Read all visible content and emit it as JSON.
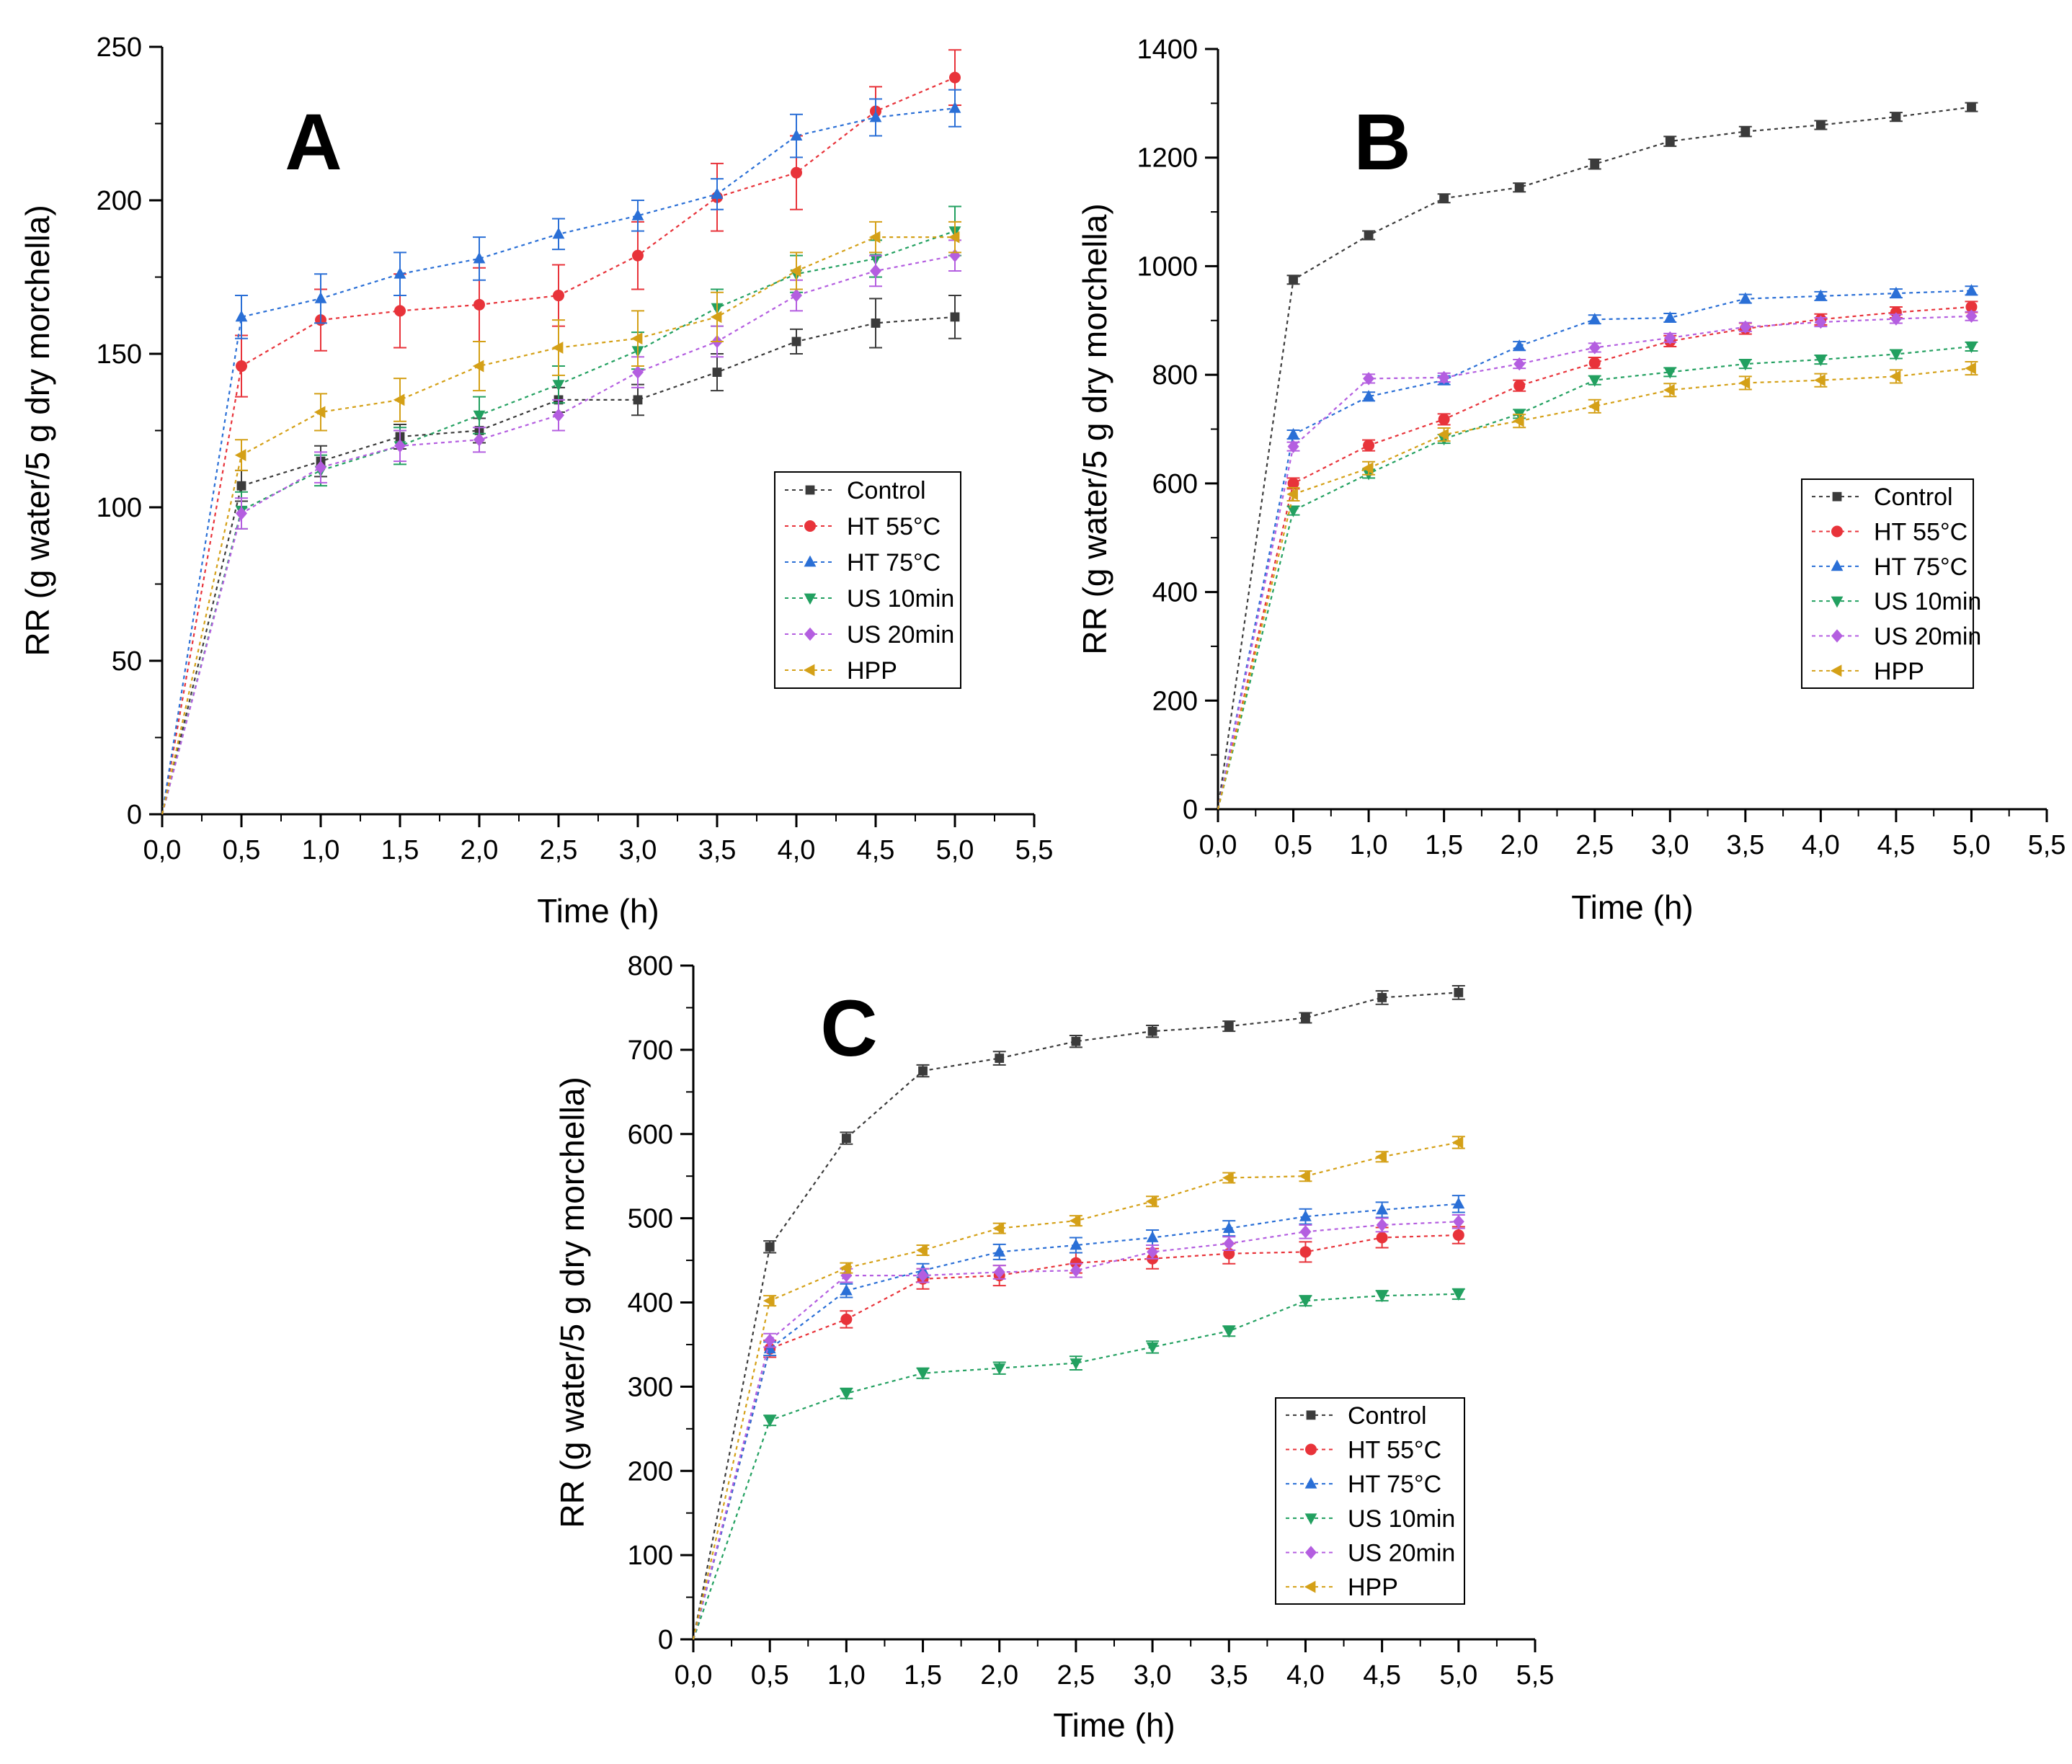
{
  "figure": {
    "colors": {
      "Control": "#3b3b3b",
      "HT 55°C": "#e8333a",
      "HT 75°C": "#2a6fd6",
      "US 10min": "#22a060",
      "US 20min": "#b45ee0",
      "HPP": "#d4a017"
    },
    "markers": {
      "Control": "square",
      "HT 55°C": "circle",
      "HT 75°C": "triangle-up",
      "US 10min": "triangle-down",
      "US 20min": "diamond",
      "HPP": "triangle-left"
    }
  },
  "chart_data": [
    {
      "panel": "A",
      "type": "line",
      "xlabel": "Time (h)",
      "ylabel": "RR (g water/5 g dry morchella)",
      "xlim": [
        0,
        5.5
      ],
      "ylim": [
        0,
        250
      ],
      "xticks": [
        "0,0",
        "0,5",
        "1,0",
        "1,5",
        "2,0",
        "2,5",
        "3,0",
        "3,5",
        "4,0",
        "4,5",
        "5,0",
        "5,5"
      ],
      "yticks": [
        "0",
        "50",
        "100",
        "150",
        "200",
        "250"
      ],
      "legend_position": "right-middle",
      "x": [
        0,
        0.5,
        1.0,
        1.5,
        2.0,
        2.5,
        3.0,
        3.5,
        4.0,
        4.5,
        5.0
      ],
      "series": [
        {
          "name": "Control",
          "values": [
            0,
            107,
            115,
            123,
            125,
            135,
            135,
            144,
            154,
            160,
            162
          ],
          "errors": [
            0,
            5,
            5,
            4,
            4,
            4,
            5,
            6,
            4,
            8,
            7
          ]
        },
        {
          "name": "HT 55°C",
          "values": [
            0,
            146,
            161,
            164,
            166,
            169,
            182,
            201,
            209,
            229,
            240
          ],
          "errors": [
            0,
            10,
            10,
            12,
            12,
            10,
            11,
            11,
            12,
            8,
            9
          ]
        },
        {
          "name": "HT 75°C",
          "values": [
            0,
            162,
            168,
            176,
            181,
            189,
            195,
            202,
            221,
            227,
            230
          ],
          "errors": [
            0,
            7,
            8,
            7,
            7,
            5,
            5,
            5,
            7,
            6,
            6
          ]
        },
        {
          "name": "US 10min",
          "values": [
            0,
            99,
            112,
            120,
            130,
            140,
            151,
            165,
            176,
            181,
            190
          ],
          "errors": [
            0,
            6,
            5,
            6,
            6,
            6,
            6,
            6,
            6,
            6,
            8
          ]
        },
        {
          "name": "US 20min",
          "values": [
            0,
            98,
            113,
            120,
            122,
            130,
            144,
            154,
            169,
            177,
            182
          ],
          "errors": [
            0,
            5,
            5,
            5,
            4,
            5,
            5,
            5,
            5,
            5,
            5
          ]
        },
        {
          "name": "HPP",
          "values": [
            0,
            117,
            131,
            135,
            146,
            152,
            155,
            162,
            177,
            188,
            188
          ],
          "errors": [
            0,
            5,
            6,
            7,
            8,
            9,
            9,
            8,
            6,
            5,
            5
          ]
        }
      ]
    },
    {
      "panel": "B",
      "type": "line",
      "xlabel": "Time (h)",
      "ylabel": "RR (g water/5 g dry morchella)",
      "xlim": [
        0,
        5.5
      ],
      "ylim": [
        0,
        1400
      ],
      "xticks": [
        "0,0",
        "0,5",
        "1,0",
        "1,5",
        "2,0",
        "2,5",
        "3,0",
        "3,5",
        "4,0",
        "4,5",
        "5,0",
        "5,5"
      ],
      "yticks": [
        "0",
        "200",
        "400",
        "600",
        "800",
        "1000",
        "1200",
        "1400"
      ],
      "legend_position": "right-middle",
      "x": [
        0,
        0.5,
        1.0,
        1.5,
        2.0,
        2.5,
        3.0,
        3.5,
        4.0,
        4.5,
        5.0
      ],
      "series": [
        {
          "name": "Control",
          "values": [
            0,
            975,
            1057,
            1125,
            1145,
            1188,
            1230,
            1248,
            1260,
            1275,
            1293
          ],
          "errors": [
            0,
            8,
            8,
            8,
            8,
            9,
            9,
            9,
            8,
            8,
            8
          ]
        },
        {
          "name": "HT 55°C",
          "values": [
            0,
            600,
            670,
            718,
            780,
            822,
            862,
            885,
            902,
            915,
            925
          ],
          "errors": [
            0,
            10,
            10,
            10,
            10,
            10,
            10,
            10,
            10,
            10,
            10
          ]
        },
        {
          "name": "HT 75°C",
          "values": [
            0,
            690,
            760,
            790,
            853,
            902,
            905,
            940,
            945,
            950,
            955
          ],
          "errors": [
            0,
            8,
            8,
            8,
            8,
            8,
            8,
            8,
            8,
            8,
            8
          ]
        },
        {
          "name": "US 10min",
          "values": [
            0,
            550,
            618,
            682,
            728,
            790,
            805,
            820,
            828,
            838,
            852
          ],
          "errors": [
            0,
            8,
            8,
            8,
            8,
            8,
            8,
            8,
            8,
            8,
            8
          ]
        },
        {
          "name": "US 20min",
          "values": [
            0,
            668,
            793,
            795,
            820,
            850,
            868,
            888,
            897,
            903,
            908
          ],
          "errors": [
            0,
            8,
            8,
            8,
            8,
            8,
            8,
            8,
            8,
            8,
            8
          ]
        },
        {
          "name": "HPP",
          "values": [
            0,
            580,
            628,
            690,
            715,
            742,
            772,
            785,
            790,
            797,
            812
          ],
          "errors": [
            0,
            12,
            12,
            12,
            12,
            12,
            12,
            12,
            12,
            12,
            12
          ]
        }
      ]
    },
    {
      "panel": "C",
      "type": "line",
      "xlabel": "Time (h)",
      "ylabel": "RR (g water/5 g dry morchella)",
      "xlim": [
        0,
        5.5
      ],
      "ylim": [
        0,
        800
      ],
      "xticks": [
        "0,0",
        "0,5",
        "1,0",
        "1,5",
        "2,0",
        "2,5",
        "3,0",
        "3,5",
        "4,0",
        "4,5",
        "5,0",
        "5,5"
      ],
      "yticks": [
        "0",
        "100",
        "200",
        "300",
        "400",
        "500",
        "600",
        "700",
        "800"
      ],
      "legend_position": "bottom-right",
      "x": [
        0,
        0.5,
        1.0,
        1.5,
        2.0,
        2.5,
        3.0,
        3.5,
        4.0,
        4.5,
        5.0
      ],
      "series": [
        {
          "name": "Control",
          "values": [
            0,
            466,
            595,
            675,
            690,
            710,
            722,
            728,
            738,
            762,
            768
          ],
          "errors": [
            0,
            7,
            7,
            7,
            8,
            7,
            7,
            6,
            6,
            8,
            8
          ]
        },
        {
          "name": "HT 55°C",
          "values": [
            0,
            345,
            380,
            428,
            432,
            447,
            452,
            458,
            460,
            477,
            480
          ],
          "errors": [
            0,
            10,
            10,
            12,
            12,
            12,
            12,
            12,
            12,
            12,
            10
          ]
        },
        {
          "name": "HT 75°C",
          "values": [
            0,
            345,
            414,
            438,
            460,
            468,
            477,
            488,
            502,
            510,
            517
          ],
          "errors": [
            0,
            8,
            8,
            8,
            9,
            9,
            9,
            9,
            9,
            9,
            10
          ]
        },
        {
          "name": "US 10min",
          "values": [
            0,
            260,
            292,
            316,
            322,
            328,
            347,
            366,
            402,
            408,
            410
          ],
          "errors": [
            0,
            6,
            6,
            6,
            7,
            8,
            7,
            6,
            6,
            6,
            6
          ]
        },
        {
          "name": "US 20min",
          "values": [
            0,
            355,
            432,
            432,
            436,
            438,
            460,
            470,
            484,
            492,
            496
          ],
          "errors": [
            0,
            8,
            8,
            8,
            8,
            8,
            8,
            8,
            8,
            8,
            8
          ]
        },
        {
          "name": "HPP",
          "values": [
            0,
            402,
            441,
            462,
            488,
            497,
            520,
            548,
            550,
            573,
            590
          ],
          "errors": [
            0,
            6,
            6,
            6,
            6,
            6,
            6,
            6,
            6,
            6,
            7
          ]
        }
      ]
    }
  ]
}
